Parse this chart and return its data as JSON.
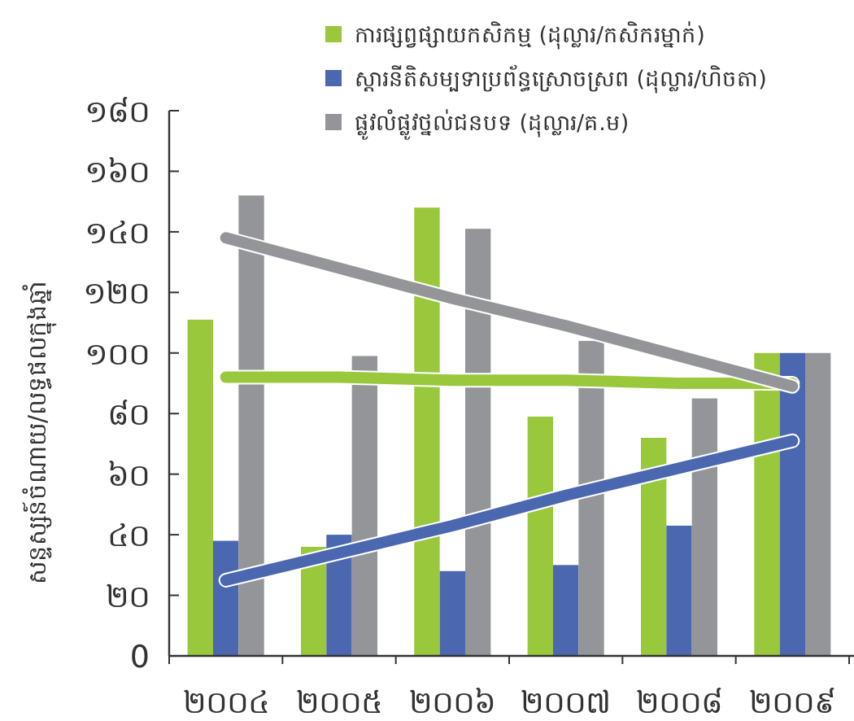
{
  "chart_data": {
    "type": "bar",
    "categories": [
      "២០០៤",
      "២០០៥",
      "២០០៦",
      "២០០៧",
      "២០០៨",
      "២០០៩"
    ],
    "ylabel": "សន្ទស្សន៍ចំណាយ/លទ្ធផលក្នុងឆ្នាំ",
    "ylim": [
      0,
      180
    ],
    "yticks": [
      {
        "value": 0,
        "label": "0"
      },
      {
        "value": 20,
        "label": "២០"
      },
      {
        "value": 40,
        "label": "៤០"
      },
      {
        "value": 60,
        "label": "៦០"
      },
      {
        "value": 80,
        "label": "៨០"
      },
      {
        "value": 100,
        "label": "១០០"
      },
      {
        "value": 120,
        "label": "១២០"
      },
      {
        "value": 140,
        "label": "១៤០"
      },
      {
        "value": 160,
        "label": "១៦០"
      },
      {
        "value": 180,
        "label": "១៨០"
      }
    ],
    "legend": "top right",
    "series": [
      {
        "name": "ការផ្សព្វផ្សាយកសិកម្ម (ដុល្លារ/កសិករម្នាក់)",
        "color": "#99c83c",
        "values": [
          111,
          36,
          148,
          79,
          72,
          100
        ]
      },
      {
        "name": "ស្តារនីតិសម្បទាប្រព័ន្ធស្រោចស្រព (ដុល្លារ/ហិចតា)",
        "color": "#4a67b0",
        "values": [
          38,
          40,
          28,
          30,
          43,
          100
        ]
      },
      {
        "name": "ផ្លូវលំផ្លូវថ្នល់ជនបទ (ដុល្លារ/គ.ម)",
        "color": "#939598",
        "values": [
          152,
          99,
          141,
          104,
          85,
          100
        ]
      },
      {
        "type": "line",
        "color": "#99c83c",
        "values": [
          92,
          92,
          91,
          91,
          90,
          90
        ]
      },
      {
        "type": "line",
        "color": "#4a67b0",
        "values": [
          25,
          34,
          43,
          53,
          62,
          71
        ]
      },
      {
        "type": "line",
        "color": "#939598",
        "values": [
          138,
          128,
          118,
          109,
          99,
          89
        ]
      }
    ]
  }
}
